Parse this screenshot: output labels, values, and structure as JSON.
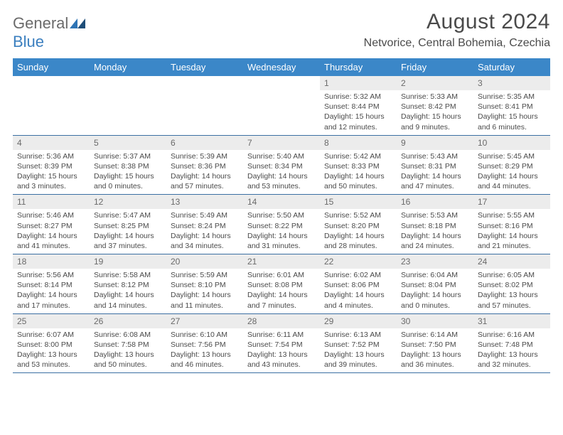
{
  "logo": {
    "word1": "General",
    "word2": "Blue",
    "mark_color": "#2e74b5"
  },
  "title": "August 2024",
  "location": "Netvorice, Central Bohemia, Czechia",
  "colors": {
    "header_bg": "#3b87c8",
    "header_text": "#ffffff",
    "daynum_bg": "#ececec",
    "rule": "#3b6fa3",
    "body_text": "#4a4a4a"
  },
  "dow": [
    "Sunday",
    "Monday",
    "Tuesday",
    "Wednesday",
    "Thursday",
    "Friday",
    "Saturday"
  ],
  "weeks": [
    [
      {
        "n": "",
        "sr": "",
        "ss": "",
        "dl": ""
      },
      {
        "n": "",
        "sr": "",
        "ss": "",
        "dl": ""
      },
      {
        "n": "",
        "sr": "",
        "ss": "",
        "dl": ""
      },
      {
        "n": "",
        "sr": "",
        "ss": "",
        "dl": ""
      },
      {
        "n": "1",
        "sr": "Sunrise: 5:32 AM",
        "ss": "Sunset: 8:44 PM",
        "dl": "Daylight: 15 hours and 12 minutes."
      },
      {
        "n": "2",
        "sr": "Sunrise: 5:33 AM",
        "ss": "Sunset: 8:42 PM",
        "dl": "Daylight: 15 hours and 9 minutes."
      },
      {
        "n": "3",
        "sr": "Sunrise: 5:35 AM",
        "ss": "Sunset: 8:41 PM",
        "dl": "Daylight: 15 hours and 6 minutes."
      }
    ],
    [
      {
        "n": "4",
        "sr": "Sunrise: 5:36 AM",
        "ss": "Sunset: 8:39 PM",
        "dl": "Daylight: 15 hours and 3 minutes."
      },
      {
        "n": "5",
        "sr": "Sunrise: 5:37 AM",
        "ss": "Sunset: 8:38 PM",
        "dl": "Daylight: 15 hours and 0 minutes."
      },
      {
        "n": "6",
        "sr": "Sunrise: 5:39 AM",
        "ss": "Sunset: 8:36 PM",
        "dl": "Daylight: 14 hours and 57 minutes."
      },
      {
        "n": "7",
        "sr": "Sunrise: 5:40 AM",
        "ss": "Sunset: 8:34 PM",
        "dl": "Daylight: 14 hours and 53 minutes."
      },
      {
        "n": "8",
        "sr": "Sunrise: 5:42 AM",
        "ss": "Sunset: 8:33 PM",
        "dl": "Daylight: 14 hours and 50 minutes."
      },
      {
        "n": "9",
        "sr": "Sunrise: 5:43 AM",
        "ss": "Sunset: 8:31 PM",
        "dl": "Daylight: 14 hours and 47 minutes."
      },
      {
        "n": "10",
        "sr": "Sunrise: 5:45 AM",
        "ss": "Sunset: 8:29 PM",
        "dl": "Daylight: 14 hours and 44 minutes."
      }
    ],
    [
      {
        "n": "11",
        "sr": "Sunrise: 5:46 AM",
        "ss": "Sunset: 8:27 PM",
        "dl": "Daylight: 14 hours and 41 minutes."
      },
      {
        "n": "12",
        "sr": "Sunrise: 5:47 AM",
        "ss": "Sunset: 8:25 PM",
        "dl": "Daylight: 14 hours and 37 minutes."
      },
      {
        "n": "13",
        "sr": "Sunrise: 5:49 AM",
        "ss": "Sunset: 8:24 PM",
        "dl": "Daylight: 14 hours and 34 minutes."
      },
      {
        "n": "14",
        "sr": "Sunrise: 5:50 AM",
        "ss": "Sunset: 8:22 PM",
        "dl": "Daylight: 14 hours and 31 minutes."
      },
      {
        "n": "15",
        "sr": "Sunrise: 5:52 AM",
        "ss": "Sunset: 8:20 PM",
        "dl": "Daylight: 14 hours and 28 minutes."
      },
      {
        "n": "16",
        "sr": "Sunrise: 5:53 AM",
        "ss": "Sunset: 8:18 PM",
        "dl": "Daylight: 14 hours and 24 minutes."
      },
      {
        "n": "17",
        "sr": "Sunrise: 5:55 AM",
        "ss": "Sunset: 8:16 PM",
        "dl": "Daylight: 14 hours and 21 minutes."
      }
    ],
    [
      {
        "n": "18",
        "sr": "Sunrise: 5:56 AM",
        "ss": "Sunset: 8:14 PM",
        "dl": "Daylight: 14 hours and 17 minutes."
      },
      {
        "n": "19",
        "sr": "Sunrise: 5:58 AM",
        "ss": "Sunset: 8:12 PM",
        "dl": "Daylight: 14 hours and 14 minutes."
      },
      {
        "n": "20",
        "sr": "Sunrise: 5:59 AM",
        "ss": "Sunset: 8:10 PM",
        "dl": "Daylight: 14 hours and 11 minutes."
      },
      {
        "n": "21",
        "sr": "Sunrise: 6:01 AM",
        "ss": "Sunset: 8:08 PM",
        "dl": "Daylight: 14 hours and 7 minutes."
      },
      {
        "n": "22",
        "sr": "Sunrise: 6:02 AM",
        "ss": "Sunset: 8:06 PM",
        "dl": "Daylight: 14 hours and 4 minutes."
      },
      {
        "n": "23",
        "sr": "Sunrise: 6:04 AM",
        "ss": "Sunset: 8:04 PM",
        "dl": "Daylight: 14 hours and 0 minutes."
      },
      {
        "n": "24",
        "sr": "Sunrise: 6:05 AM",
        "ss": "Sunset: 8:02 PM",
        "dl": "Daylight: 13 hours and 57 minutes."
      }
    ],
    [
      {
        "n": "25",
        "sr": "Sunrise: 6:07 AM",
        "ss": "Sunset: 8:00 PM",
        "dl": "Daylight: 13 hours and 53 minutes."
      },
      {
        "n": "26",
        "sr": "Sunrise: 6:08 AM",
        "ss": "Sunset: 7:58 PM",
        "dl": "Daylight: 13 hours and 50 minutes."
      },
      {
        "n": "27",
        "sr": "Sunrise: 6:10 AM",
        "ss": "Sunset: 7:56 PM",
        "dl": "Daylight: 13 hours and 46 minutes."
      },
      {
        "n": "28",
        "sr": "Sunrise: 6:11 AM",
        "ss": "Sunset: 7:54 PM",
        "dl": "Daylight: 13 hours and 43 minutes."
      },
      {
        "n": "29",
        "sr": "Sunrise: 6:13 AM",
        "ss": "Sunset: 7:52 PM",
        "dl": "Daylight: 13 hours and 39 minutes."
      },
      {
        "n": "30",
        "sr": "Sunrise: 6:14 AM",
        "ss": "Sunset: 7:50 PM",
        "dl": "Daylight: 13 hours and 36 minutes."
      },
      {
        "n": "31",
        "sr": "Sunrise: 6:16 AM",
        "ss": "Sunset: 7:48 PM",
        "dl": "Daylight: 13 hours and 32 minutes."
      }
    ]
  ]
}
